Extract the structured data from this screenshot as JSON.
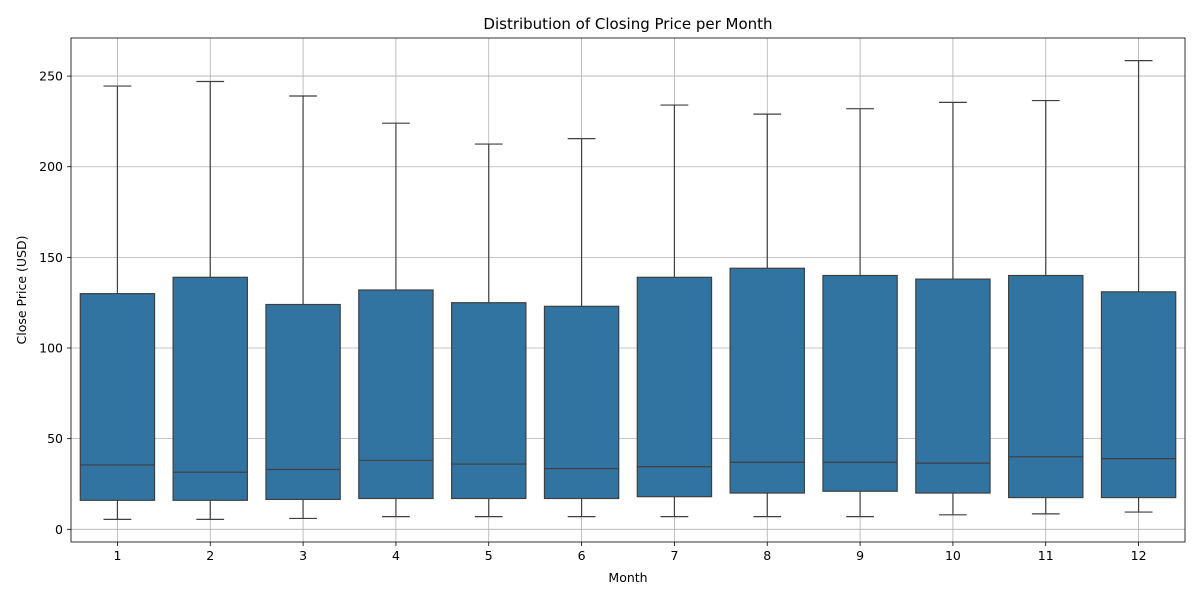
{
  "chart_data": {
    "type": "box",
    "title": "Distribution of Closing Price per Month",
    "xlabel": "Month",
    "ylabel": "Close Price (USD)",
    "categories": [
      "1",
      "2",
      "3",
      "4",
      "5",
      "6",
      "7",
      "8",
      "9",
      "10",
      "11",
      "12"
    ],
    "boxes": [
      {
        "min": 5.5,
        "q1": 16.0,
        "median": 35.5,
        "q3": 130.0,
        "max": 244.5
      },
      {
        "min": 5.5,
        "q1": 16.0,
        "median": 31.5,
        "q3": 139.0,
        "max": 247.0
      },
      {
        "min": 6.0,
        "q1": 16.5,
        "median": 33.0,
        "q3": 124.0,
        "max": 239.0
      },
      {
        "min": 7.0,
        "q1": 17.0,
        "median": 38.0,
        "q3": 132.0,
        "max": 224.0
      },
      {
        "min": 7.0,
        "q1": 17.0,
        "median": 36.0,
        "q3": 125.0,
        "max": 212.5
      },
      {
        "min": 7.0,
        "q1": 17.0,
        "median": 33.5,
        "q3": 123.0,
        "max": 215.5
      },
      {
        "min": 7.0,
        "q1": 18.0,
        "median": 34.5,
        "q3": 139.0,
        "max": 234.0
      },
      {
        "min": 7.0,
        "q1": 20.0,
        "median": 37.0,
        "q3": 144.0,
        "max": 229.0
      },
      {
        "min": 7.0,
        "q1": 21.0,
        "median": 37.0,
        "q3": 140.0,
        "max": 232.0
      },
      {
        "min": 8.0,
        "q1": 20.0,
        "median": 36.5,
        "q3": 138.0,
        "max": 235.5
      },
      {
        "min": 8.5,
        "q1": 17.5,
        "median": 40.0,
        "q3": 140.0,
        "max": 236.5
      },
      {
        "min": 9.5,
        "q1": 17.5,
        "median": 39.0,
        "q3": 131.0,
        "max": 258.5
      }
    ],
    "yticks": [
      0,
      50,
      100,
      150,
      200,
      250
    ],
    "ylim": [
      -7,
      271
    ],
    "grid": true,
    "box_color": "#3274a1",
    "line_color": "#3f3f3f"
  }
}
